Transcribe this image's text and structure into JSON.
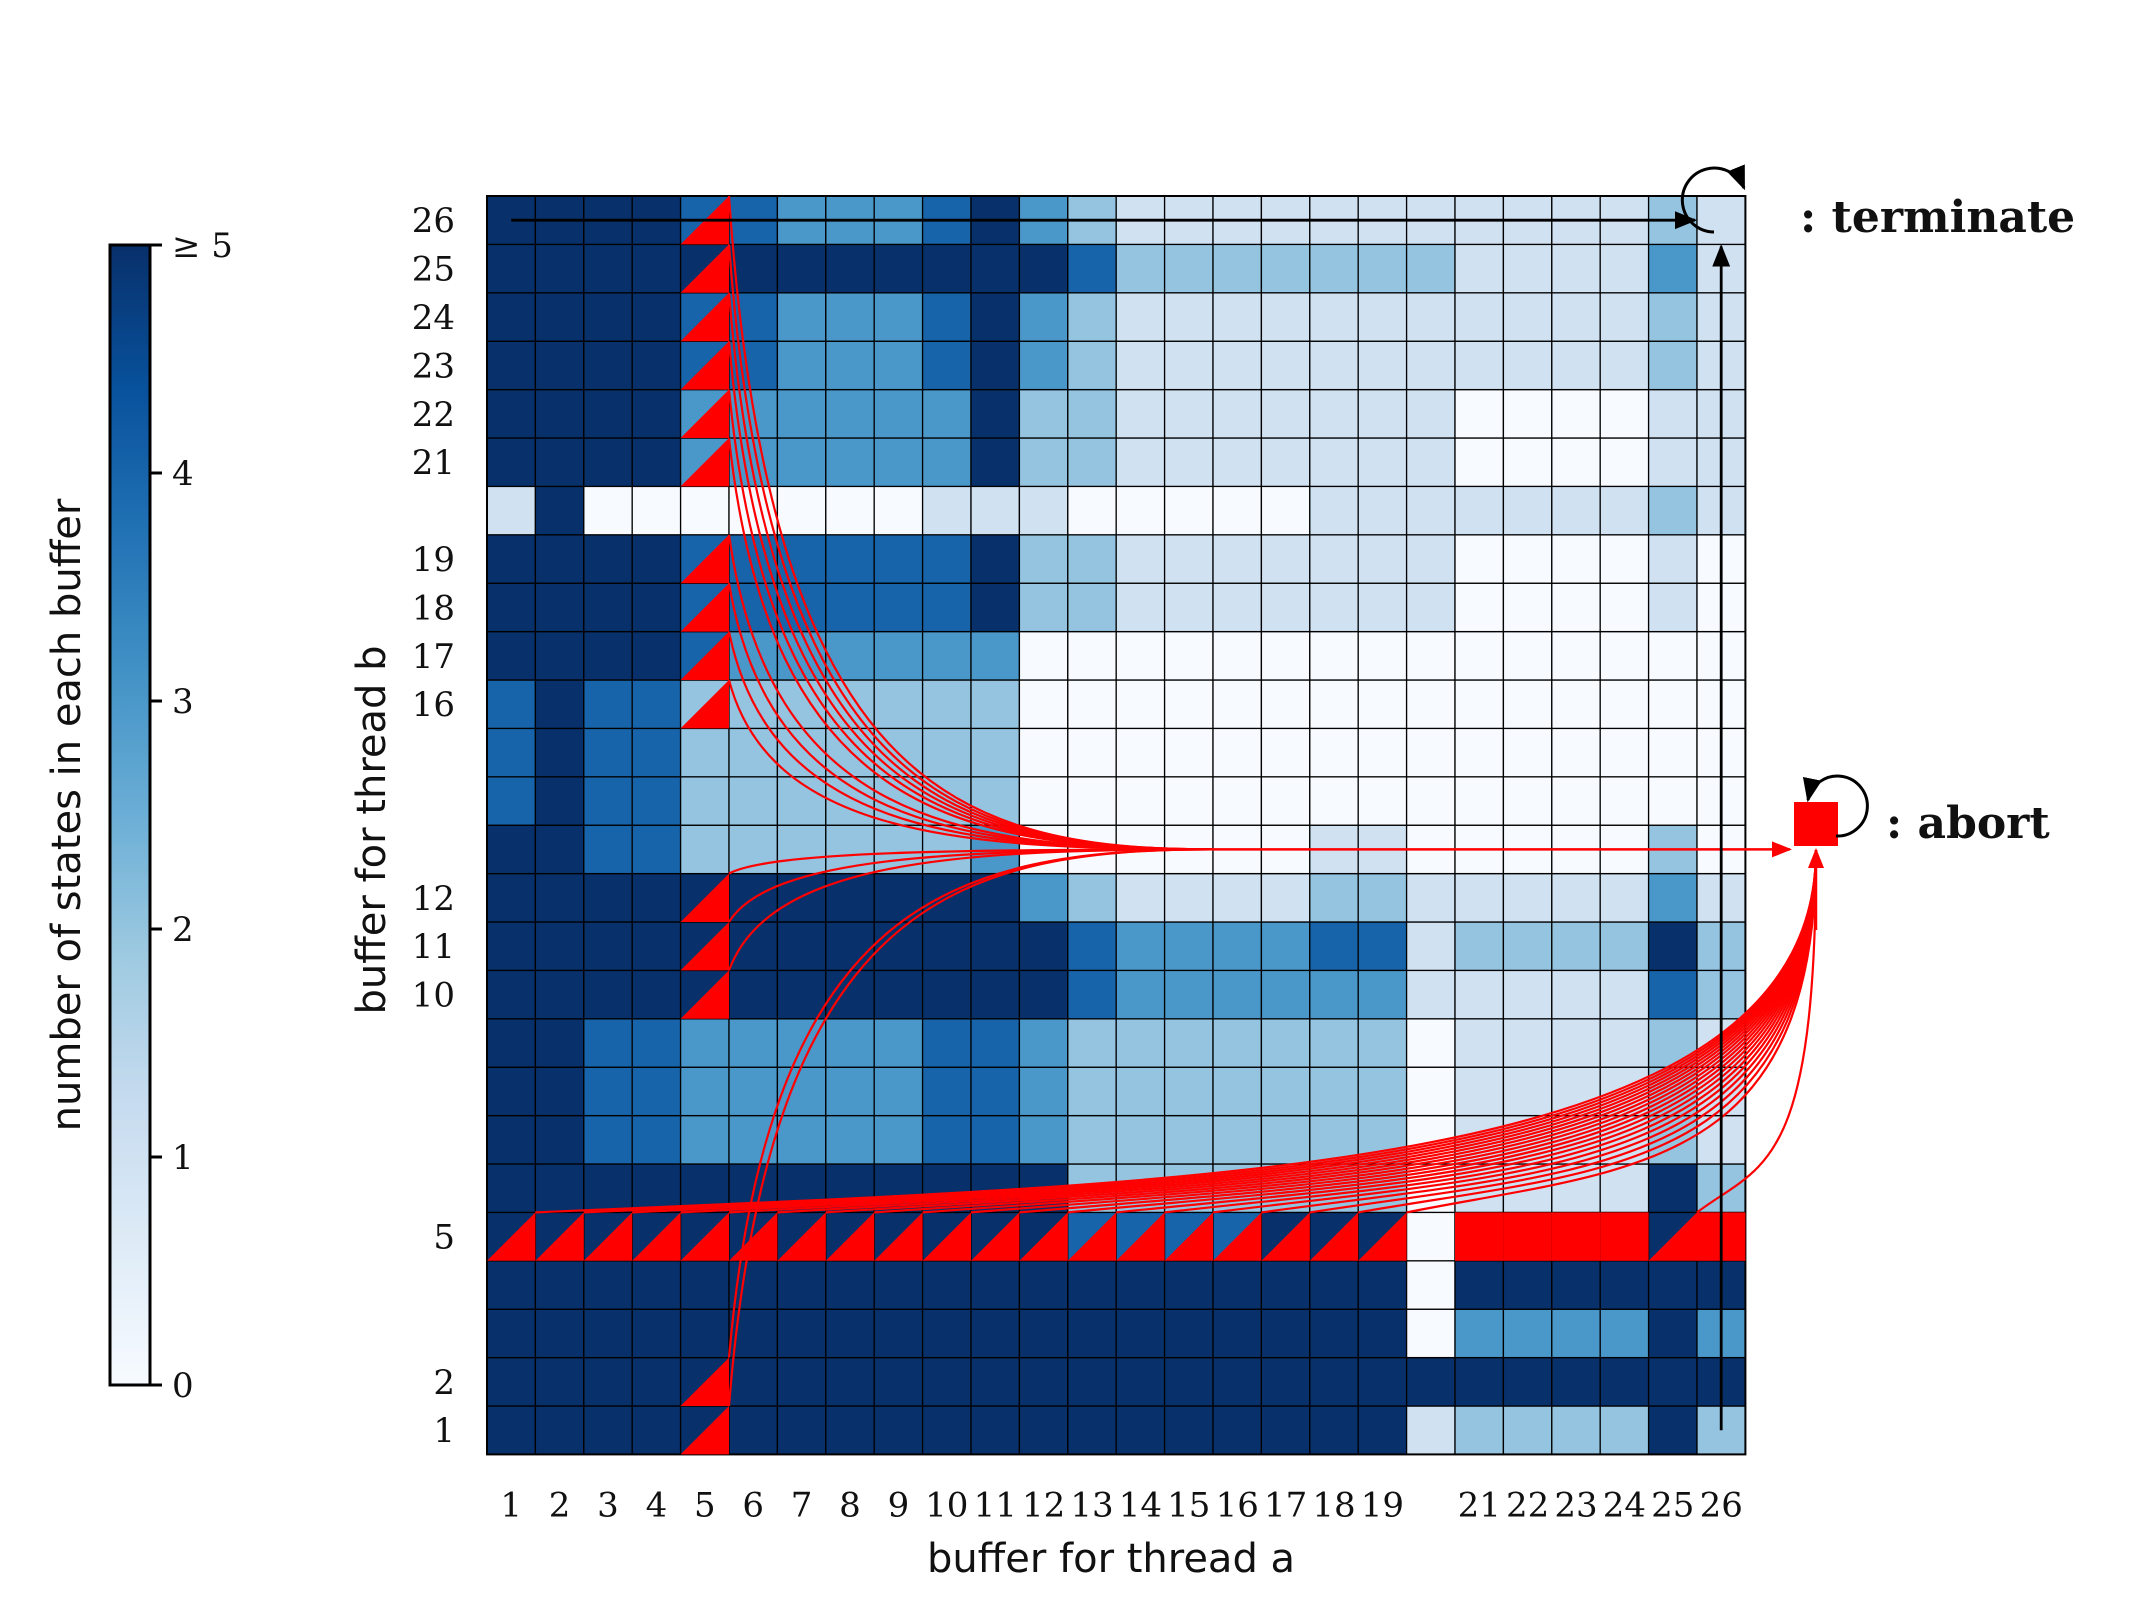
{
  "chart_data": {
    "type": "heatmap",
    "xlabel": "buffer for thread a",
    "ylabel": "buffer for thread b",
    "x_tick_labels": [
      "1",
      "2",
      "3",
      "4",
      "5",
      "6",
      "7",
      "8",
      "9",
      "10",
      "11",
      "12",
      "13",
      "14",
      "15",
      "16",
      "17",
      "18",
      "19",
      "",
      "21",
      "22",
      "23",
      "24",
      "25",
      "26"
    ],
    "y_tick_labels": [
      "1",
      "2",
      "",
      "",
      "5",
      "",
      "",
      "",
      "",
      "10",
      "11",
      "12",
      "",
      "",
      "",
      "16",
      "17",
      "18",
      "19",
      "",
      "21",
      "22",
      "23",
      "24",
      "25",
      "26"
    ],
    "colorbar": {
      "label": "number of states in each buffer",
      "ticks": [
        "0",
        "1",
        "2",
        "3",
        "4",
        "≥ 5"
      ],
      "min": 0,
      "max": 5,
      "colors": [
        "#f7fbff",
        "#deebf7",
        "#c6dbef",
        "#9ecae1",
        "#6baed6",
        "#4292c6",
        "#2171b5",
        "#08519c",
        "#08306b"
      ]
    },
    "values_rows_bottom_to_top": [
      [
        5,
        5,
        5,
        5,
        5,
        5,
        5,
        5,
        5,
        5,
        5,
        5,
        5,
        5,
        5,
        5,
        5,
        5,
        5,
        1,
        2,
        2,
        2,
        2,
        5,
        2
      ],
      [
        5,
        5,
        5,
        5,
        5,
        5,
        5,
        5,
        5,
        5,
        5,
        5,
        5,
        5,
        5,
        5,
        5,
        5,
        5,
        5,
        5,
        5,
        5,
        5,
        5,
        5
      ],
      [
        5,
        5,
        5,
        5,
        5,
        5,
        5,
        5,
        5,
        5,
        5,
        5,
        5,
        5,
        5,
        5,
        5,
        5,
        5,
        0,
        3,
        3,
        3,
        3,
        5,
        3
      ],
      [
        5,
        5,
        5,
        5,
        5,
        5,
        5,
        5,
        5,
        5,
        5,
        5,
        5,
        5,
        5,
        5,
        5,
        5,
        5,
        0,
        5,
        5,
        5,
        5,
        5,
        5
      ],
      [
        5,
        5,
        5,
        5,
        5,
        5,
        5,
        5,
        5,
        5,
        5,
        5,
        4,
        4,
        4,
        4,
        5,
        5,
        5,
        0,
        5,
        5,
        5,
        5,
        5,
        5
      ],
      [
        5,
        5,
        5,
        5,
        5,
        5,
        5,
        5,
        5,
        5,
        5,
        5,
        2,
        2,
        2,
        2,
        2,
        2,
        2,
        0,
        1,
        1,
        1,
        1,
        5,
        2
      ],
      [
        5,
        5,
        4,
        4,
        3,
        3,
        3,
        3,
        3,
        4,
        4,
        3,
        2,
        2,
        2,
        2,
        2,
        2,
        2,
        0,
        1,
        1,
        1,
        1,
        2,
        1
      ],
      [
        5,
        5,
        4,
        4,
        3,
        3,
        3,
        3,
        3,
        4,
        4,
        3,
        2,
        2,
        2,
        2,
        2,
        2,
        2,
        0,
        1,
        1,
        1,
        1,
        2,
        1
      ],
      [
        5,
        5,
        4,
        4,
        3,
        3,
        3,
        3,
        3,
        4,
        4,
        3,
        2,
        2,
        2,
        2,
        2,
        2,
        2,
        0,
        1,
        1,
        1,
        1,
        2,
        1
      ],
      [
        5,
        5,
        5,
        5,
        5,
        5,
        5,
        5,
        5,
        5,
        5,
        5,
        4,
        3,
        3,
        3,
        3,
        3,
        3,
        1,
        1,
        1,
        1,
        1,
        4,
        2
      ],
      [
        5,
        5,
        5,
        5,
        5,
        5,
        5,
        5,
        5,
        5,
        5,
        5,
        4,
        3,
        3,
        3,
        3,
        4,
        4,
        1,
        2,
        2,
        2,
        2,
        5,
        2
      ],
      [
        5,
        5,
        5,
        5,
        5,
        5,
        5,
        5,
        5,
        5,
        5,
        3,
        2,
        1,
        1,
        1,
        1,
        2,
        2,
        1,
        1,
        1,
        1,
        1,
        3,
        1
      ],
      [
        5,
        5,
        4,
        4,
        2,
        2,
        2,
        2,
        2,
        2,
        3,
        0,
        0,
        0,
        0,
        0,
        0,
        1,
        1,
        0,
        0,
        0,
        0,
        0,
        2,
        0
      ],
      [
        4,
        5,
        4,
        4,
        2,
        2,
        2,
        2,
        2,
        2,
        2,
        0,
        0,
        0,
        0,
        0,
        0,
        0,
        0,
        0,
        0,
        0,
        0,
        0,
        0,
        0
      ],
      [
        4,
        5,
        4,
        4,
        2,
        2,
        2,
        2,
        2,
        2,
        2,
        0,
        0,
        0,
        0,
        0,
        0,
        0,
        0,
        0,
        0,
        0,
        0,
        0,
        0,
        0
      ],
      [
        4,
        5,
        4,
        4,
        2,
        2,
        2,
        2,
        2,
        2,
        2,
        0,
        0,
        0,
        0,
        0,
        0,
        0,
        0,
        0,
        0,
        0,
        0,
        0,
        0,
        0
      ],
      [
        5,
        5,
        5,
        5,
        4,
        3,
        3,
        3,
        3,
        3,
        3,
        0,
        0,
        0,
        0,
        0,
        0,
        0,
        0,
        0,
        0,
        0,
        0,
        0,
        0,
        0
      ],
      [
        5,
        5,
        5,
        5,
        4,
        4,
        4,
        4,
        4,
        4,
        5,
        2,
        2,
        1,
        1,
        1,
        1,
        1,
        1,
        1,
        0,
        0,
        0,
        0,
        1,
        0
      ],
      [
        5,
        5,
        5,
        5,
        4,
        4,
        4,
        4,
        4,
        4,
        5,
        2,
        2,
        1,
        1,
        1,
        1,
        1,
        1,
        1,
        0,
        0,
        0,
        0,
        1,
        0
      ],
      [
        1,
        5,
        0,
        0,
        0,
        0,
        0,
        0,
        0,
        1,
        1,
        1,
        0,
        0,
        0,
        0,
        0,
        1,
        1,
        1,
        1,
        1,
        1,
        1,
        2,
        1
      ],
      [
        5,
        5,
        5,
        5,
        3,
        3,
        3,
        3,
        3,
        3,
        5,
        2,
        2,
        1,
        1,
        1,
        1,
        1,
        1,
        1,
        0,
        0,
        0,
        0,
        1,
        1
      ],
      [
        5,
        5,
        5,
        5,
        3,
        3,
        3,
        3,
        3,
        3,
        5,
        2,
        2,
        1,
        1,
        1,
        1,
        1,
        1,
        1,
        0,
        0,
        0,
        0,
        1,
        1
      ],
      [
        5,
        5,
        5,
        5,
        4,
        4,
        3,
        3,
        3,
        4,
        5,
        3,
        2,
        1,
        1,
        1,
        1,
        1,
        1,
        1,
        1,
        1,
        1,
        1,
        2,
        1
      ],
      [
        5,
        5,
        5,
        5,
        4,
        4,
        3,
        3,
        3,
        4,
        5,
        3,
        2,
        1,
        1,
        1,
        1,
        1,
        1,
        1,
        1,
        1,
        1,
        1,
        2,
        1
      ],
      [
        5,
        5,
        5,
        5,
        5,
        5,
        5,
        5,
        5,
        5,
        5,
        5,
        4,
        2,
        2,
        2,
        2,
        2,
        2,
        2,
        1,
        1,
        1,
        1,
        3,
        1
      ],
      [
        5,
        5,
        5,
        5,
        4,
        4,
        3,
        3,
        3,
        4,
        5,
        3,
        2,
        1,
        1,
        1,
        1,
        1,
        1,
        1,
        1,
        1,
        1,
        1,
        2,
        1
      ]
    ],
    "abort_cells_triangle": [
      [
        5,
        1
      ],
      [
        5,
        2
      ],
      [
        5,
        10
      ],
      [
        5,
        11
      ],
      [
        5,
        12
      ],
      [
        5,
        16
      ],
      [
        5,
        17
      ],
      [
        5,
        18
      ],
      [
        5,
        19
      ],
      [
        5,
        21
      ],
      [
        5,
        22
      ],
      [
        5,
        23
      ],
      [
        5,
        24
      ],
      [
        5,
        25
      ],
      [
        5,
        26
      ],
      [
        1,
        5
      ],
      [
        2,
        5
      ],
      [
        3,
        5
      ],
      [
        4,
        5
      ],
      [
        5,
        5
      ],
      [
        6,
        5
      ],
      [
        7,
        5
      ],
      [
        8,
        5
      ],
      [
        9,
        5
      ],
      [
        10,
        5
      ],
      [
        11,
        5
      ],
      [
        12,
        5
      ],
      [
        13,
        5
      ],
      [
        14,
        5
      ],
      [
        15,
        5
      ],
      [
        16,
        5
      ],
      [
        17,
        5
      ],
      [
        18,
        5
      ],
      [
        19,
        5
      ],
      [
        25,
        5
      ]
    ],
    "abort_cells_full": [
      [
        21,
        5
      ],
      [
        22,
        5
      ],
      [
        23,
        5
      ],
      [
        24,
        5
      ],
      [
        26,
        5
      ]
    ],
    "abort_row_b": 13,
    "terminate_cell": [
      26,
      26
    ],
    "annotations": {
      "terminate": ": terminate",
      "abort": ": abort"
    },
    "colors": {
      "abort": "#ff0000",
      "terminate_arrow": "#000000",
      "grid": "#000000"
    }
  }
}
